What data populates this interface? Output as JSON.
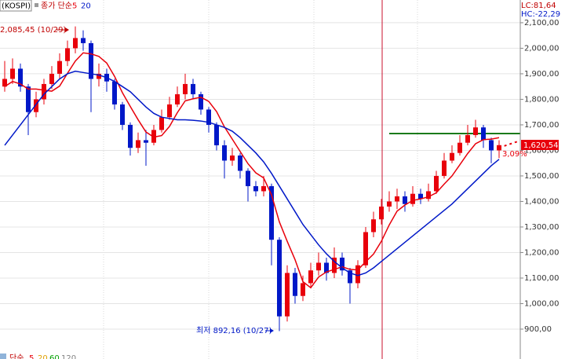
{
  "chart_data": {
    "type": "candlestick",
    "header": {
      "symbol": "(KOSPI)",
      "prefix": "종가 단순"
    },
    "corner": [
      "LC:81,64",
      "HC:-22,29"
    ],
    "annotations": {
      "high": "2,085,45 (10/29)",
      "low": "최저 892,16 (10/27)",
      "price": "1,620,54",
      "change": "3,09%"
    },
    "bottom_legend": [
      "단순",
      "5",
      "20",
      "60",
      "120"
    ],
    "up_color": "#e8000b",
    "down_color": "#0018c8",
    "categories": [
      null,
      null,
      null,
      null,
      null,
      null,
      null,
      null,
      null,
      null,
      null,
      null,
      null,
      null,
      null,
      null,
      null,
      null,
      null,
      null,
      null,
      null,
      null,
      null,
      null,
      null,
      null,
      null,
      null,
      null,
      null,
      null,
      null,
      null,
      null,
      null,
      null,
      null,
      null,
      null,
      null,
      null,
      null,
      null,
      null,
      null,
      null,
      null,
      null,
      null,
      null,
      null,
      null,
      null,
      null,
      null,
      null,
      null,
      null,
      null,
      null,
      null,
      null,
      null
    ],
    "open": [
      1850,
      1880,
      1920,
      1850,
      1750,
      1800,
      1860,
      1900,
      1950,
      2000,
      2040,
      2020,
      1880,
      1900,
      1870,
      1780,
      1700,
      1610,
      1640,
      1630,
      1680,
      1730,
      1780,
      1820,
      1860,
      1820,
      1760,
      1700,
      1620,
      1560,
      1580,
      1520,
      1460,
      1440,
      1460,
      1250,
      950,
      1120,
      1030,
      1080,
      1130,
      1160,
      1120,
      1180,
      1130,
      1080,
      1150,
      1280,
      1330,
      1380,
      1400,
      1420,
      1390,
      1430,
      1410,
      1440,
      1500,
      1560,
      1590,
      1630,
      1660,
      1690,
      1640,
      1600
    ],
    "high": [
      1950,
      1960,
      1940,
      1860,
      1830,
      1880,
      1930,
      1980,
      2030,
      2085.45,
      2070,
      2030,
      1940,
      1920,
      1880,
      1790,
      1710,
      1670,
      1680,
      1700,
      1760,
      1810,
      1850,
      1900,
      1880,
      1830,
      1770,
      1710,
      1640,
      1610,
      1590,
      1530,
      1480,
      1500,
      1470,
      1260,
      1150,
      1140,
      1110,
      1160,
      1200,
      1180,
      1220,
      1200,
      1140,
      1170,
      1300,
      1360,
      1410,
      1440,
      1450,
      1440,
      1460,
      1450,
      1470,
      1520,
      1590,
      1620,
      1660,
      1700,
      1720,
      1700,
      1650,
      1640
    ],
    "low": [
      1830,
      1860,
      1830,
      1660,
      1730,
      1780,
      1840,
      1880,
      1930,
      1980,
      1990,
      1750,
      1850,
      1830,
      1760,
      1680,
      1580,
      1590,
      1540,
      1620,
      1670,
      1720,
      1770,
      1800,
      1800,
      1740,
      1670,
      1600,
      1490,
      1540,
      1490,
      1400,
      1420,
      1420,
      1150,
      892.16,
      930,
      1000,
      1010,
      1060,
      1110,
      1090,
      1100,
      1110,
      1000,
      1060,
      1140,
      1260,
      1310,
      1360,
      1370,
      1360,
      1380,
      1390,
      1400,
      1430,
      1490,
      1550,
      1580,
      1620,
      1650,
      1610,
      1550,
      1570
    ],
    "close": [
      1880,
      1920,
      1850,
      1750,
      1800,
      1860,
      1900,
      1950,
      2000,
      2040,
      2020,
      1880,
      1900,
      1870,
      1780,
      1700,
      1610,
      1640,
      1630,
      1680,
      1730,
      1780,
      1820,
      1860,
      1820,
      1760,
      1700,
      1620,
      1560,
      1580,
      1520,
      1460,
      1440,
      1460,
      1250,
      950,
      1120,
      1030,
      1080,
      1130,
      1160,
      1120,
      1180,
      1130,
      1080,
      1150,
      1280,
      1330,
      1380,
      1400,
      1420,
      1390,
      1430,
      1410,
      1440,
      1500,
      1560,
      1590,
      1630,
      1660,
      1690,
      1640,
      1600,
      1620.54
    ],
    "series": [
      {
        "name": "5",
        "color": "#e8000b",
        "values": [
          1850,
          1870,
          1860,
          1840,
          1840,
          1836,
          1832,
          1852,
          1902,
          1950,
          1982,
          1978,
          1968,
          1942,
          1890,
          1826,
          1772,
          1720,
          1672,
          1652,
          1658,
          1694,
          1748,
          1794,
          1802,
          1808,
          1792,
          1752,
          1692,
          1644,
          1596,
          1548,
          1512,
          1492,
          1426,
          1320,
          1244,
          1172,
          1086,
          1062,
          1104,
          1124,
          1134,
          1144,
          1134,
          1132,
          1164,
          1194,
          1244,
          1308,
          1362,
          1386,
          1404,
          1410,
          1418,
          1434,
          1468,
          1500,
          1544,
          1588,
          1626,
          1642,
          1644,
          1650
        ]
      },
      {
        "name": "20",
        "color": "#0018c8",
        "values": [
          1620,
          1660,
          1700,
          1740,
          1780,
          1820,
          1850,
          1880,
          1900,
          1910,
          1905,
          1900,
          1895,
          1885,
          1870,
          1850,
          1830,
          1800,
          1770,
          1745,
          1730,
          1725,
          1720,
          1720,
          1718,
          1715,
          1710,
          1700,
          1690,
          1675,
          1650,
          1620,
          1590,
          1555,
          1510,
          1460,
          1410,
          1360,
          1310,
          1270,
          1230,
          1195,
          1165,
          1140,
          1120,
          1110,
          1120,
          1140,
          1165,
          1190,
          1215,
          1240,
          1265,
          1290,
          1315,
          1340,
          1365,
          1390,
          1420,
          1450,
          1480,
          1510,
          1540,
          1565
        ]
      }
    ],
    "reference_line": 1666,
    "ylim": [
      783,
      2189
    ],
    "yticks": [
      {
        "value": 2100,
        "label": "2,100,00"
      },
      {
        "value": 2000,
        "label": "2,000,00"
      },
      {
        "value": 1900,
        "label": "1,900,00"
      },
      {
        "value": 1800,
        "label": "1,800,00"
      },
      {
        "value": 1700,
        "label": "1,700,00"
      },
      {
        "value": 1600,
        "label": "1,600,00"
      },
      {
        "value": 1500,
        "label": "1,500,00"
      },
      {
        "value": 1400,
        "label": "1,400,00"
      },
      {
        "value": 1300,
        "label": "1,300,00"
      },
      {
        "value": 1200,
        "label": "1,200,00"
      },
      {
        "value": 1100,
        "label": "1,100,00"
      },
      {
        "value": 1000,
        "label": "1,000,00"
      },
      {
        "value": 900,
        "label": "900,00"
      }
    ],
    "grid": true
  }
}
